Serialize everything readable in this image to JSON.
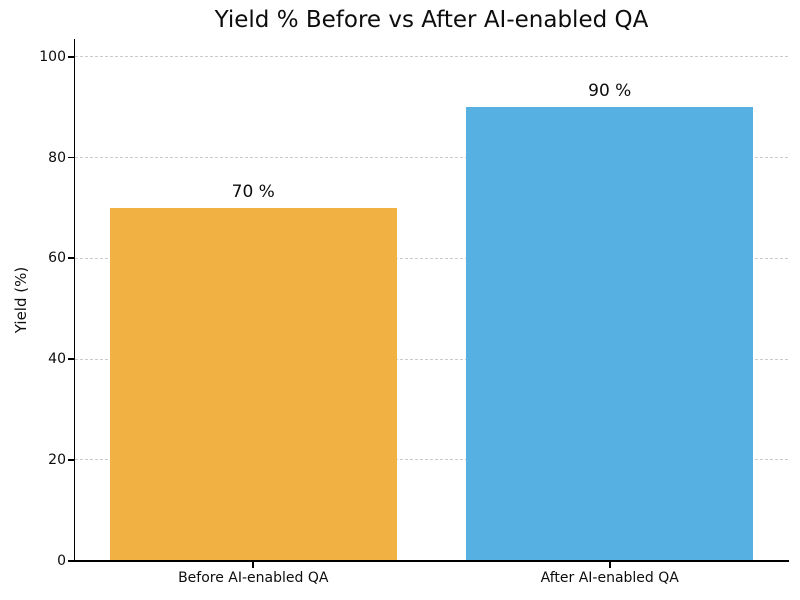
{
  "chart_data": {
    "type": "bar",
    "title": "Yield % Before vs After AI-enabled QA",
    "ylabel": "Yield (%)",
    "xlabel": "",
    "categories": [
      "Before AI-enabled QA",
      "After AI-enabled QA"
    ],
    "values": [
      70,
      90
    ],
    "value_labels": [
      "70 %",
      "90 %"
    ],
    "bar_colors": [
      "#F2B143",
      "#57B0E2"
    ],
    "yticks": [
      0,
      20,
      40,
      60,
      80,
      100
    ],
    "ylim": [
      0,
      103.5
    ],
    "grid": "horizontal-dashed",
    "gridline_color": "#cccccc",
    "legend": "none",
    "background_color": "#ffffff"
  }
}
